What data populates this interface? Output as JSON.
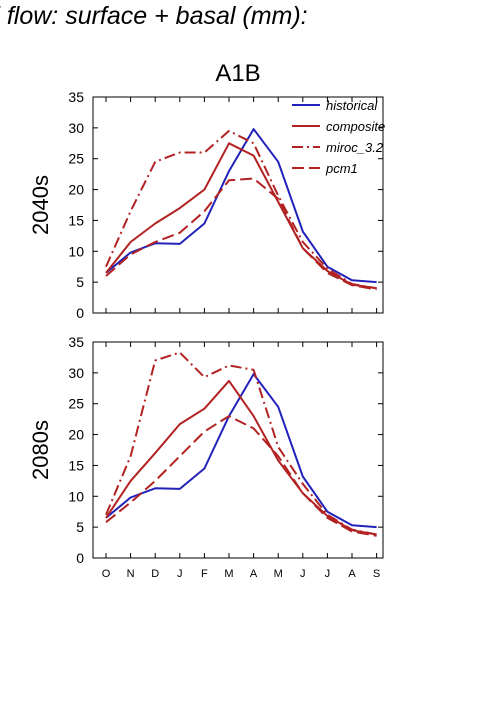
{
  "figure": {
    "title": "d flow: surface + basal (mm):",
    "panel_heading": "A1B"
  },
  "legend": {
    "position": "top-right",
    "entries": [
      {
        "label": "historical",
        "color": "#2222bb",
        "dash": "solid"
      },
      {
        "label": "composite",
        "color": "#b22222",
        "dash": "solid"
      },
      {
        "label": "miroc_3.2",
        "color": "#b22222",
        "dash": "dashdot"
      },
      {
        "label": "pcm1",
        "color": "#b22222",
        "dash": "dashed"
      }
    ]
  },
  "chart_data": [
    {
      "type": "line",
      "ylabel": "2040s",
      "ylim": [
        0,
        35
      ],
      "yticks": [
        0,
        5,
        10,
        15,
        20,
        25,
        30,
        35
      ],
      "categories": [
        "O",
        "N",
        "D",
        "J",
        "F",
        "M",
        "A",
        "M",
        "J",
        "J",
        "A",
        "S"
      ],
      "grid": false,
      "series": [
        {
          "name": "historical",
          "color": "#2222bb",
          "dash": "solid",
          "values": [
            6.5,
            9.8,
            11.3,
            11.2,
            14.5,
            23.0,
            29.8,
            24.5,
            13.2,
            7.5,
            5.3,
            5.0
          ]
        },
        {
          "name": "composite",
          "color": "#b22222",
          "dash": "solid",
          "values": [
            6.5,
            11.5,
            14.5,
            17.0,
            20.0,
            27.5,
            25.5,
            18.0,
            10.5,
            6.8,
            4.6,
            4.0
          ]
        },
        {
          "name": "miroc_3.2",
          "color": "#b22222",
          "dash": "dashdot",
          "values": [
            7.5,
            16.5,
            24.5,
            26.0,
            26.0,
            29.5,
            27.5,
            19.0,
            11.5,
            7.2,
            4.7,
            4.0
          ]
        },
        {
          "name": "pcm1",
          "color": "#b22222",
          "dash": "dashed",
          "values": [
            6.0,
            9.5,
            11.5,
            13.0,
            16.5,
            21.5,
            21.8,
            18.5,
            10.5,
            6.5,
            4.5,
            3.8
          ]
        }
      ]
    },
    {
      "type": "line",
      "ylabel": "2080s",
      "ylim": [
        0,
        35
      ],
      "yticks": [
        0,
        5,
        10,
        15,
        20,
        25,
        30,
        35
      ],
      "categories": [
        "O",
        "N",
        "D",
        "J",
        "F",
        "M",
        "A",
        "M",
        "J",
        "J",
        "A",
        "S"
      ],
      "grid": false,
      "series": [
        {
          "name": "historical",
          "color": "#2222bb",
          "dash": "solid",
          "values": [
            6.5,
            9.8,
            11.3,
            11.2,
            14.5,
            23.0,
            29.8,
            24.5,
            13.2,
            7.5,
            5.3,
            5.0
          ]
        },
        {
          "name": "composite",
          "color": "#b22222",
          "dash": "solid",
          "values": [
            6.5,
            12.5,
            17.0,
            21.7,
            24.2,
            28.7,
            23.0,
            15.8,
            10.5,
            6.8,
            4.5,
            3.8
          ]
        },
        {
          "name": "miroc_3.2",
          "color": "#b22222",
          "dash": "dashdot",
          "values": [
            7.0,
            16.5,
            32.0,
            33.3,
            29.3,
            31.2,
            30.5,
            18.0,
            12.0,
            7.0,
            4.6,
            3.8
          ]
        },
        {
          "name": "pcm1",
          "color": "#b22222",
          "dash": "dashed",
          "values": [
            5.8,
            9.0,
            12.5,
            16.5,
            20.5,
            23.0,
            21.0,
            16.5,
            10.5,
            6.5,
            4.3,
            3.6
          ]
        }
      ]
    }
  ]
}
